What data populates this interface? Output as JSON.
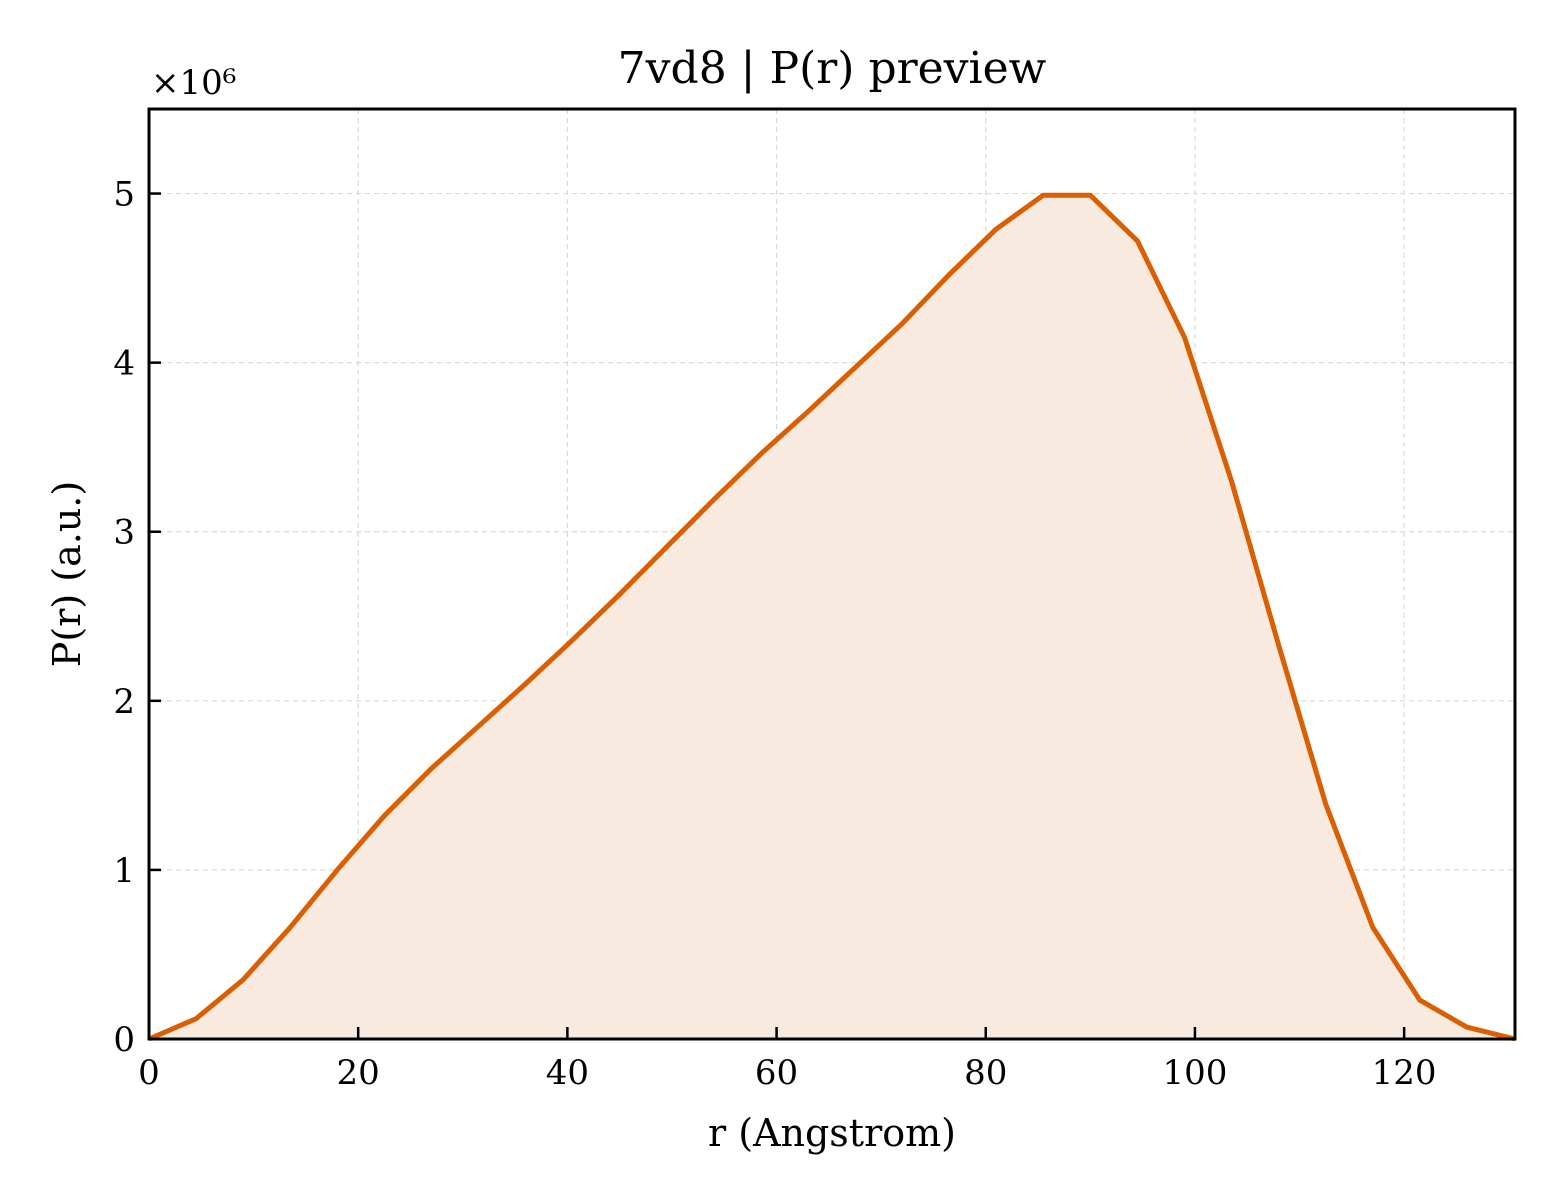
{
  "chart_data": {
    "type": "area",
    "title": "7vd8 | P(r) preview",
    "xlabel": "r (Angstrom)",
    "ylabel": "P(r) (a.u.)",
    "y_offset_label": "×10⁶",
    "xlim": [
      0,
      130.6
    ],
    "ylim": [
      0,
      5.5
    ],
    "x_ticks": [
      0,
      20,
      40,
      60,
      80,
      100,
      120
    ],
    "y_ticks": [
      0,
      1,
      2,
      3,
      4,
      5
    ],
    "grid": true,
    "colors": {
      "line": "#d95f02",
      "fill": "#f9eadf",
      "grid": "#d9d9d9"
    },
    "series": [
      {
        "x": [
          0,
          4.5,
          9.0,
          13.5,
          18.0,
          22.5,
          27.0,
          31.5,
          36.0,
          40.5,
          45.0,
          49.5,
          54.0,
          58.5,
          63.0,
          67.5,
          72.0,
          76.5,
          81.0,
          85.5,
          90.0,
          94.5,
          99.0,
          103.5,
          108.0,
          112.5,
          117.0,
          121.5,
          126.0,
          130.6
        ],
        "values": [
          0.0,
          0.12,
          0.35,
          0.66,
          1.0,
          1.32,
          1.6,
          1.85,
          2.1,
          2.36,
          2.63,
          2.91,
          3.19,
          3.46,
          3.71,
          3.97,
          4.23,
          4.52,
          4.79,
          4.99,
          4.99,
          4.72,
          4.15,
          3.3,
          2.33,
          1.39,
          0.66,
          0.23,
          0.07,
          0.0
        ]
      }
    ]
  }
}
